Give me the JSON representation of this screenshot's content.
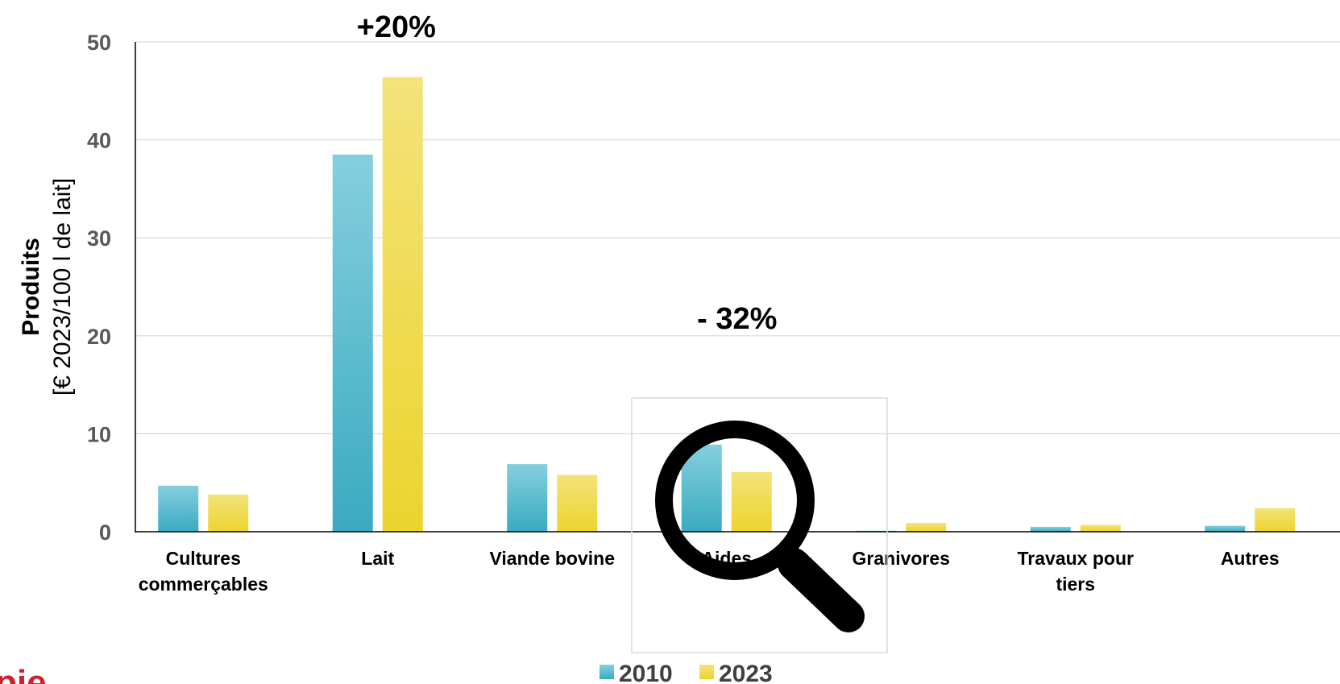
{
  "chart_data": {
    "type": "bar",
    "categories": [
      [
        "Cultures",
        "commerçables"
      ],
      [
        "Lait"
      ],
      [
        "Viande bovine"
      ],
      [
        "Aides"
      ],
      [
        "Granivores"
      ],
      [
        "Travaux pour",
        "tiers"
      ],
      [
        "Autres"
      ]
    ],
    "series": [
      {
        "name": "2010",
        "values": [
          4.7,
          38.5,
          6.9,
          8.9,
          0.1,
          0.5,
          0.6
        ],
        "color_top": "#85cfdd",
        "color_bottom": "#3aaac1"
      },
      {
        "name": "2023",
        "values": [
          3.8,
          46.4,
          5.8,
          6.1,
          0.9,
          0.7,
          2.4
        ],
        "color_top": "#f3e37a",
        "color_bottom": "#ecd42e"
      }
    ],
    "y_ticks": [
      0,
      10,
      20,
      30,
      40,
      50
    ],
    "ylim": [
      0,
      50
    ],
    "ylabel_bold": "Produits",
    "ylabel_unit": "[€ 2023/100 l de lait]",
    "grid": true,
    "legend_position": "bottom",
    "annotations": [
      {
        "text": "+20%",
        "category": 1
      },
      {
        "text": "- 32%",
        "category": 3
      }
    ]
  },
  "overlay": {
    "icon": "magnifier-icon",
    "logo_fragment": "pie",
    "logo_color": "#d11f2e"
  }
}
